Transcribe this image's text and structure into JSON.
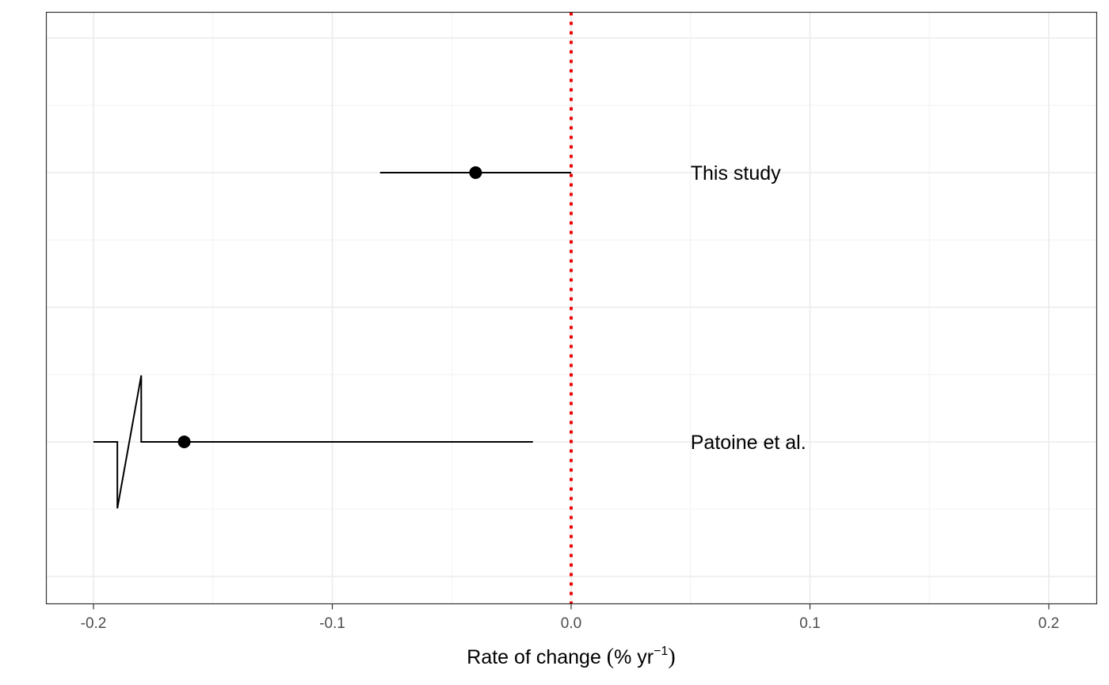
{
  "chart_data": {
    "type": "forest",
    "xlabel": {
      "prefix": "Rate of change ",
      "open": "(",
      "body": "% yr",
      "sup": "−1",
      "close": ")"
    },
    "xlim": [
      -0.22,
      0.22
    ],
    "x_ticks": [
      {
        "value": -0.2,
        "label": "-0.2"
      },
      {
        "value": -0.1,
        "label": "-0.1"
      },
      {
        "value": 0.0,
        "label": "0.0"
      },
      {
        "value": 0.1,
        "label": "0.1"
      },
      {
        "value": 0.2,
        "label": "0.2"
      }
    ],
    "x_minor_gridlines": [
      -0.15,
      -0.05,
      0.05,
      0.15
    ],
    "reference_line": {
      "x": 0.0,
      "style": "dotted",
      "color": "#ee0000"
    },
    "studies": [
      {
        "label": "This study",
        "estimate": -0.04,
        "lower": -0.08,
        "upper": 0.0,
        "label_x": 0.05
      },
      {
        "label": "Patoine et al.",
        "estimate": -0.162,
        "lower": -0.2,
        "upper": -0.016,
        "label_x": 0.05,
        "axis_break": true
      }
    ],
    "grid": true,
    "legend": "none",
    "colors": {
      "point": "#000000",
      "line": "#000000",
      "grid": "#ebebeb",
      "panel_border": "#333333"
    }
  }
}
